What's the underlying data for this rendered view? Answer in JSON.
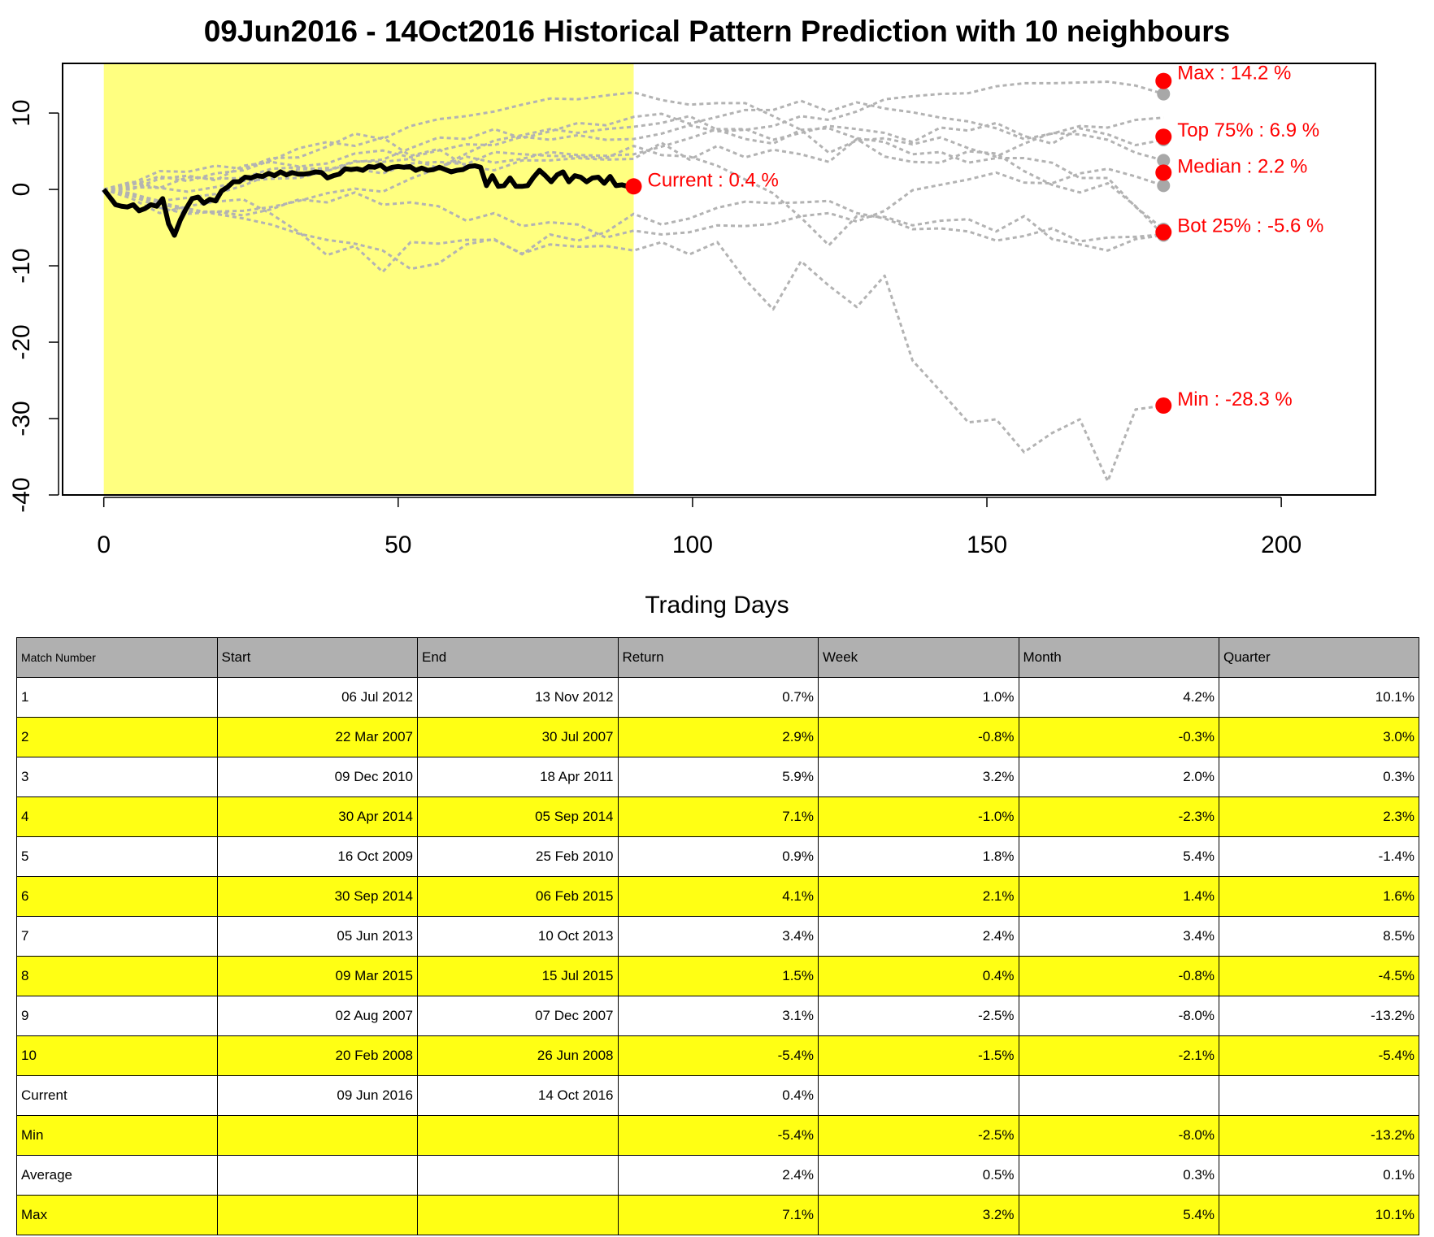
{
  "chart_data": {
    "type": "line",
    "title": "09Jun2016 - 14Oct2016 Historical Pattern Prediction with 10 neighbours",
    "xlabel": "Trading Days",
    "ylabel": "",
    "xlim": [
      -7,
      216
    ],
    "ylim": [
      -40,
      16.5
    ],
    "x_ticks": [
      0,
      50,
      100,
      150,
      200
    ],
    "y_ticks": [
      -40,
      -30,
      -20,
      -10,
      0,
      10
    ],
    "highlight_region": {
      "x_start": 0,
      "x_end": 90,
      "color": "#ffff80"
    },
    "current_series": {
      "style": "solid-black",
      "values": [
        0,
        -1,
        -2,
        -2.2,
        -2.3,
        -2,
        -2.8,
        -2.5,
        -2,
        -2.2,
        -1.2,
        -4.5,
        -6,
        -4,
        -2.5,
        -1.2,
        -1,
        -1.8,
        -1.3,
        -1.5,
        -0.2,
        0.3,
        1,
        1,
        1.6,
        1.5,
        1.8,
        1.7,
        2.1,
        1.8,
        2.3,
        1.9,
        2.2,
        2,
        2,
        2.1,
        2.3,
        2.2,
        1.5,
        1.8,
        2,
        2.7,
        2.6,
        2.7,
        2.5,
        3,
        2.9,
        3.2,
        2.6,
        2.9,
        3,
        2.9,
        3,
        2.5,
        2.8,
        2.5,
        2.6,
        2.9,
        2.6,
        2.3,
        2.5,
        2.6,
        3,
        3.1,
        2.9,
        0.5,
        1.8,
        0.4,
        0.5,
        1.5,
        0.4,
        0.4,
        0.5,
        1.6,
        2.5,
        1.8,
        1,
        1.9,
        2.3,
        1,
        1.8,
        1.6,
        1,
        1.5,
        1.6,
        0.8,
        1.7,
        0.5,
        0.6,
        0.4,
        0.4
      ]
    },
    "neighbour_series": [
      {
        "values": [
          0,
          0,
          1.4,
          1.8,
          1.2,
          3.1,
          3.6,
          3,
          3.4,
          4.7,
          5.1,
          4.2,
          5.1,
          5.9,
          5.8,
          6.9,
          6.5,
          7.1,
          6.5,
          6.6,
          7.3,
          8.4,
          7.6,
          7.8,
          8.3,
          9.6,
          9.1,
          10.2,
          11.8,
          12.2,
          12.5,
          12.6,
          13.5,
          13.9,
          13.9,
          14,
          14.1,
          13.6,
          12.5
        ]
      },
      {
        "values": [
          0,
          1,
          0.2,
          1.6,
          1.4,
          1.5,
          2.7,
          2.9,
          2.5,
          3.7,
          3.6,
          4,
          2.8,
          4.3,
          3.5,
          4,
          4.9,
          4.5,
          4.4,
          4.6,
          5.6,
          6.7,
          7.9,
          7.9,
          6.5,
          7.4,
          8.3,
          7.9,
          7.4,
          6.2,
          8.1,
          7.7,
          8.7,
          7,
          6,
          8,
          7.2,
          5.8,
          6.5
        ]
      },
      {
        "values": [
          0,
          -1.2,
          -3.1,
          -2.2,
          -1.6,
          -1.3,
          -3.2,
          -5.6,
          -8.6,
          -7.4,
          -10.8,
          -6.9,
          -7.1,
          -6.6,
          -6.6,
          -8.4,
          -7.2,
          -7.5,
          -7.4,
          -8,
          -6.9,
          -8.5,
          -6.9,
          -11.8,
          -15.7,
          -9.4,
          -12.6,
          -15.4,
          -11.3,
          -22.4,
          -26.4,
          -30.5,
          -30.1,
          -34.4,
          -31.9,
          -30.1,
          -38.2,
          -28.8,
          -28.3
        ]
      },
      {
        "values": [
          0,
          -0.6,
          -1.5,
          -1.1,
          -0.6,
          0.5,
          2,
          2.6,
          2.8,
          2.7,
          2.1,
          3.4,
          3.6,
          3.3,
          4.9,
          4.6,
          4.4,
          4.3,
          4.1,
          5.7,
          4.5,
          4.3,
          3.1,
          1.3,
          -0.5,
          -3.7,
          -7.3,
          -3.5,
          -3.6,
          -4.7,
          -4.1,
          -3.9,
          -5.5,
          -3.5,
          -6.5,
          -7.2,
          -8,
          -6.5,
          -6
        ]
      },
      {
        "values": [
          0,
          0.8,
          2.4,
          2.3,
          3.1,
          2.7,
          4.1,
          4.2,
          5.6,
          7.3,
          6.6,
          8.3,
          9.2,
          9.6,
          10.2,
          11.1,
          11.9,
          11.8,
          12.3,
          12.7,
          11.7,
          11.1,
          11.3,
          11.3,
          9.6,
          7.8,
          4.8,
          6.4,
          6.7,
          5.9,
          6.8,
          5.4,
          4.3,
          6,
          7.4,
          7.2,
          6.5,
          4.8,
          3.8
        ]
      },
      {
        "values": [
          0,
          -0.8,
          -2.4,
          -3.2,
          -2.9,
          -3.4,
          -2.6,
          -1.3,
          -1.7,
          -0.4,
          -2,
          -1.7,
          -2.2,
          -4.1,
          -3.1,
          -4.8,
          -4.3,
          -4.6,
          -6.3,
          -5.4,
          -5.9,
          -5.6,
          -4.7,
          -4.8,
          -4.5,
          -3.5,
          -3.1,
          -4.2,
          -2.8,
          -0.1,
          0.6,
          1.3,
          2.2,
          0.9,
          0.8,
          2.1,
          2.7,
          1.7,
          0.5
        ]
      },
      {
        "values": [
          0,
          0.6,
          1.7,
          1.1,
          2.1,
          2.5,
          3.8,
          5.4,
          6.2,
          5.7,
          6.8,
          4.4,
          5.3,
          3,
          2.5,
          3.8,
          3.8,
          4.1,
          3.9,
          4,
          6.1,
          3.9,
          5.7,
          4.2,
          5.2,
          4.6,
          3.6,
          6.6,
          4.3,
          3.6,
          3.5,
          5,
          4.7,
          2.4,
          0.6,
          -0.4,
          0.8,
          -2.2,
          -6
        ]
      },
      {
        "values": [
          0,
          -0.8,
          -1.8,
          -2.9,
          -2.9,
          -2.8,
          -2.3,
          -1.5,
          -0.5,
          0.1,
          -0.3,
          1.4,
          2.8,
          4.7,
          6.4,
          7.1,
          7.9,
          7.4,
          7.9,
          8.2,
          8.7,
          9.6,
          7.8,
          6.6,
          6,
          7.8,
          8,
          6.7,
          6.2,
          4.6,
          4.9,
          3.5,
          4.1,
          4.1,
          3.5,
          1.5,
          1.5,
          -2.3,
          -5.2
        ]
      },
      {
        "values": [
          0,
          0.3,
          0.2,
          -0.3,
          0.3,
          1.1,
          1.4,
          1.5,
          2.4,
          3.6,
          3.9,
          5.4,
          6.8,
          6.6,
          7.9,
          6.7,
          7.6,
          8.7,
          8.4,
          9.5,
          9.9,
          8.6,
          9.5,
          10.4,
          10.4,
          11.6,
          10.2,
          11.4,
          10.6,
          10.1,
          9.4,
          8.9,
          8,
          6.6,
          7.3,
          8.3,
          8.1,
          9.1,
          9.4
        ]
      },
      {
        "values": [
          0,
          -0.5,
          -1.7,
          -2.5,
          -3.2,
          -3.8,
          -4.6,
          -5.8,
          -6.6,
          -7.1,
          -8,
          -10.4,
          -9.7,
          -7.2,
          -6.5,
          -8.5,
          -5.9,
          -6.7,
          -5.6,
          -3.2,
          -4.6,
          -3.8,
          -2.4,
          -1.6,
          -1.8,
          -1.7,
          -1.5,
          -3.1,
          -3.8,
          -5.2,
          -5.1,
          -5.5,
          -6.7,
          -6.1,
          -5.1,
          -6.8,
          -6.3,
          -6.2,
          -5.9
        ]
      }
    ],
    "neighbour_style": {
      "color": "#b3b3b3",
      "dash": "dotted"
    },
    "end_markers_grey": [
      12.5,
      6.5,
      3.8,
      0.5,
      -6,
      -5.2
    ],
    "annotations": [
      {
        "label": "Max : 14.2 %",
        "x": 180,
        "y": 14.2
      },
      {
        "label": "Top 75% : 6.9 %",
        "x": 180,
        "y": 6.9
      },
      {
        "label": "Median : 2.2 %",
        "x": 180,
        "y": 2.2
      },
      {
        "label": "Bot 25% : -5.6 %",
        "x": 180,
        "y": -5.6
      },
      {
        "label": "Min : -28.3 %",
        "x": 180,
        "y": -28.3
      },
      {
        "label": "Current : 0.4 %",
        "x": 90,
        "y": 0.4
      }
    ],
    "annotation_color": "#ff0000",
    "highlight_color": "#ffff80"
  },
  "table": {
    "headers": [
      "Match Number",
      "Start",
      "End",
      "Return",
      "Week",
      "Month",
      "Quarter"
    ],
    "rows": [
      [
        "1",
        "06 Jul 2012",
        "13 Nov 2012",
        "0.7%",
        "1.0%",
        "4.2%",
        "10.1%"
      ],
      [
        "2",
        "22 Mar 2007",
        "30 Jul 2007",
        "2.9%",
        "-0.8%",
        "-0.3%",
        "3.0%"
      ],
      [
        "3",
        "09 Dec 2010",
        "18 Apr 2011",
        "5.9%",
        "3.2%",
        "2.0%",
        "0.3%"
      ],
      [
        "4",
        "30 Apr 2014",
        "05 Sep 2014",
        "7.1%",
        "-1.0%",
        "-2.3%",
        "2.3%"
      ],
      [
        "5",
        "16 Oct 2009",
        "25 Feb 2010",
        "0.9%",
        "1.8%",
        "5.4%",
        "-1.4%"
      ],
      [
        "6",
        "30 Sep 2014",
        "06 Feb 2015",
        "4.1%",
        "2.1%",
        "1.4%",
        "1.6%"
      ],
      [
        "7",
        "05 Jun 2013",
        "10 Oct 2013",
        "3.4%",
        "2.4%",
        "3.4%",
        "8.5%"
      ],
      [
        "8",
        "09 Mar 2015",
        "15 Jul 2015",
        "1.5%",
        "0.4%",
        "-0.8%",
        "-4.5%"
      ],
      [
        "9",
        "02 Aug 2007",
        "07 Dec 2007",
        "3.1%",
        "-2.5%",
        "-8.0%",
        "-13.2%"
      ],
      [
        "10",
        "20 Feb 2008",
        "26 Jun 2008",
        "-5.4%",
        "-1.5%",
        "-2.1%",
        "-5.4%"
      ],
      [
        "Current",
        "09 Jun 2016",
        "14 Oct 2016",
        "0.4%",
        "",
        "",
        ""
      ],
      [
        "Min",
        "",
        "",
        "-5.4%",
        "-2.5%",
        "-8.0%",
        "-13.2%"
      ],
      [
        "Average",
        "",
        "",
        "2.4%",
        "0.5%",
        "0.3%",
        "0.1%"
      ],
      [
        "Max",
        "",
        "",
        "7.1%",
        "3.2%",
        "5.4%",
        "10.1%"
      ]
    ],
    "row_highlight_color": "#ffff14",
    "header_color": "#b0b0b0"
  }
}
